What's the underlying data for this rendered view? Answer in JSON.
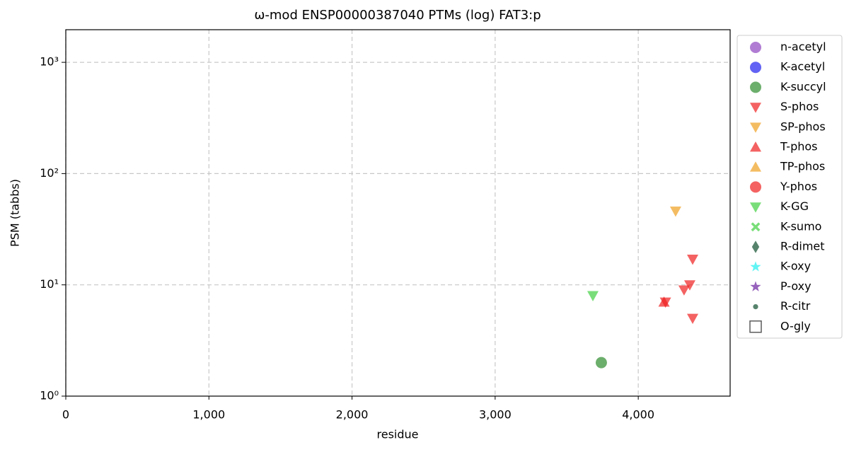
{
  "chart_data": {
    "type": "scatter",
    "title": "ω-mod ENSP00000387040 PTMs (log) FAT3:p",
    "x_label": "residue",
    "y_label": "PSM (tabbs)",
    "xlim": [
      0,
      4642
    ],
    "ylim": [
      1,
      1964
    ],
    "log_y": true,
    "grid": true,
    "legend": "outside right",
    "xticks": [
      0,
      {
        "value": 1000,
        "label": "1,000"
      },
      {
        "value": 2000,
        "label": "2,000"
      },
      {
        "value": 3000,
        "label": "3,000"
      },
      {
        "value": 4000,
        "label": "4,000"
      }
    ],
    "yticks": [
      {
        "value": 1,
        "label": "10⁰"
      },
      {
        "value": 10,
        "label": "10¹"
      },
      {
        "value": 100,
        "label": "10²"
      },
      {
        "value": 1000,
        "label": "10³"
      }
    ],
    "series": [
      {
        "name": "n-acetyl",
        "color": "#8e44c0",
        "marker": "circle",
        "x": [],
        "y": []
      },
      {
        "name": "K-acetyl",
        "color": "#2020f0",
        "marker": "circle",
        "x": [],
        "y": []
      },
      {
        "name": "K-succyl",
        "color": "#2e8b2e",
        "marker": "circle",
        "x": [
          3742
        ],
        "y": [
          2
        ]
      },
      {
        "name": "S-phos",
        "color": "#f02020",
        "marker": "triangle-down",
        "x": [
          4190,
          4320,
          4360,
          4380,
          4380
        ],
        "y": [
          7,
          9,
          10,
          17,
          5
        ]
      },
      {
        "name": "SP-phos",
        "color": "#f0a020",
        "marker": "triangle-down",
        "x": [
          4261
        ],
        "y": [
          46
        ]
      },
      {
        "name": "T-phos",
        "color": "#f02020",
        "marker": "triangle-up",
        "x": [
          4180
        ],
        "y": [
          7
        ]
      },
      {
        "name": "TP-phos",
        "color": "#f0a020",
        "marker": "triangle-up",
        "x": [],
        "y": []
      },
      {
        "name": "Y-phos",
        "color": "#f02020",
        "marker": "circle",
        "x": [],
        "y": []
      },
      {
        "name": "K-GG",
        "color": "#40d040",
        "marker": "triangle-down",
        "x": [
          3683
        ],
        "y": [
          8
        ]
      },
      {
        "name": "K-sumo",
        "color": "#40d040",
        "marker": "x",
        "x": [],
        "y": []
      },
      {
        "name": "R-dimet",
        "color": "#0e4e2e",
        "marker": "diamond",
        "x": [],
        "y": []
      },
      {
        "name": "K-oxy",
        "color": "#20f0f0",
        "marker": "star",
        "x": [],
        "y": []
      },
      {
        "name": "P-oxy",
        "color": "#6a20a0",
        "marker": "star",
        "x": [],
        "y": []
      },
      {
        "name": "R-citr",
        "color": "#0e4e2e",
        "marker": "dot",
        "x": [],
        "y": []
      },
      {
        "name": "O-gly",
        "color": "#333333",
        "marker": "square",
        "x": [],
        "y": []
      }
    ]
  }
}
